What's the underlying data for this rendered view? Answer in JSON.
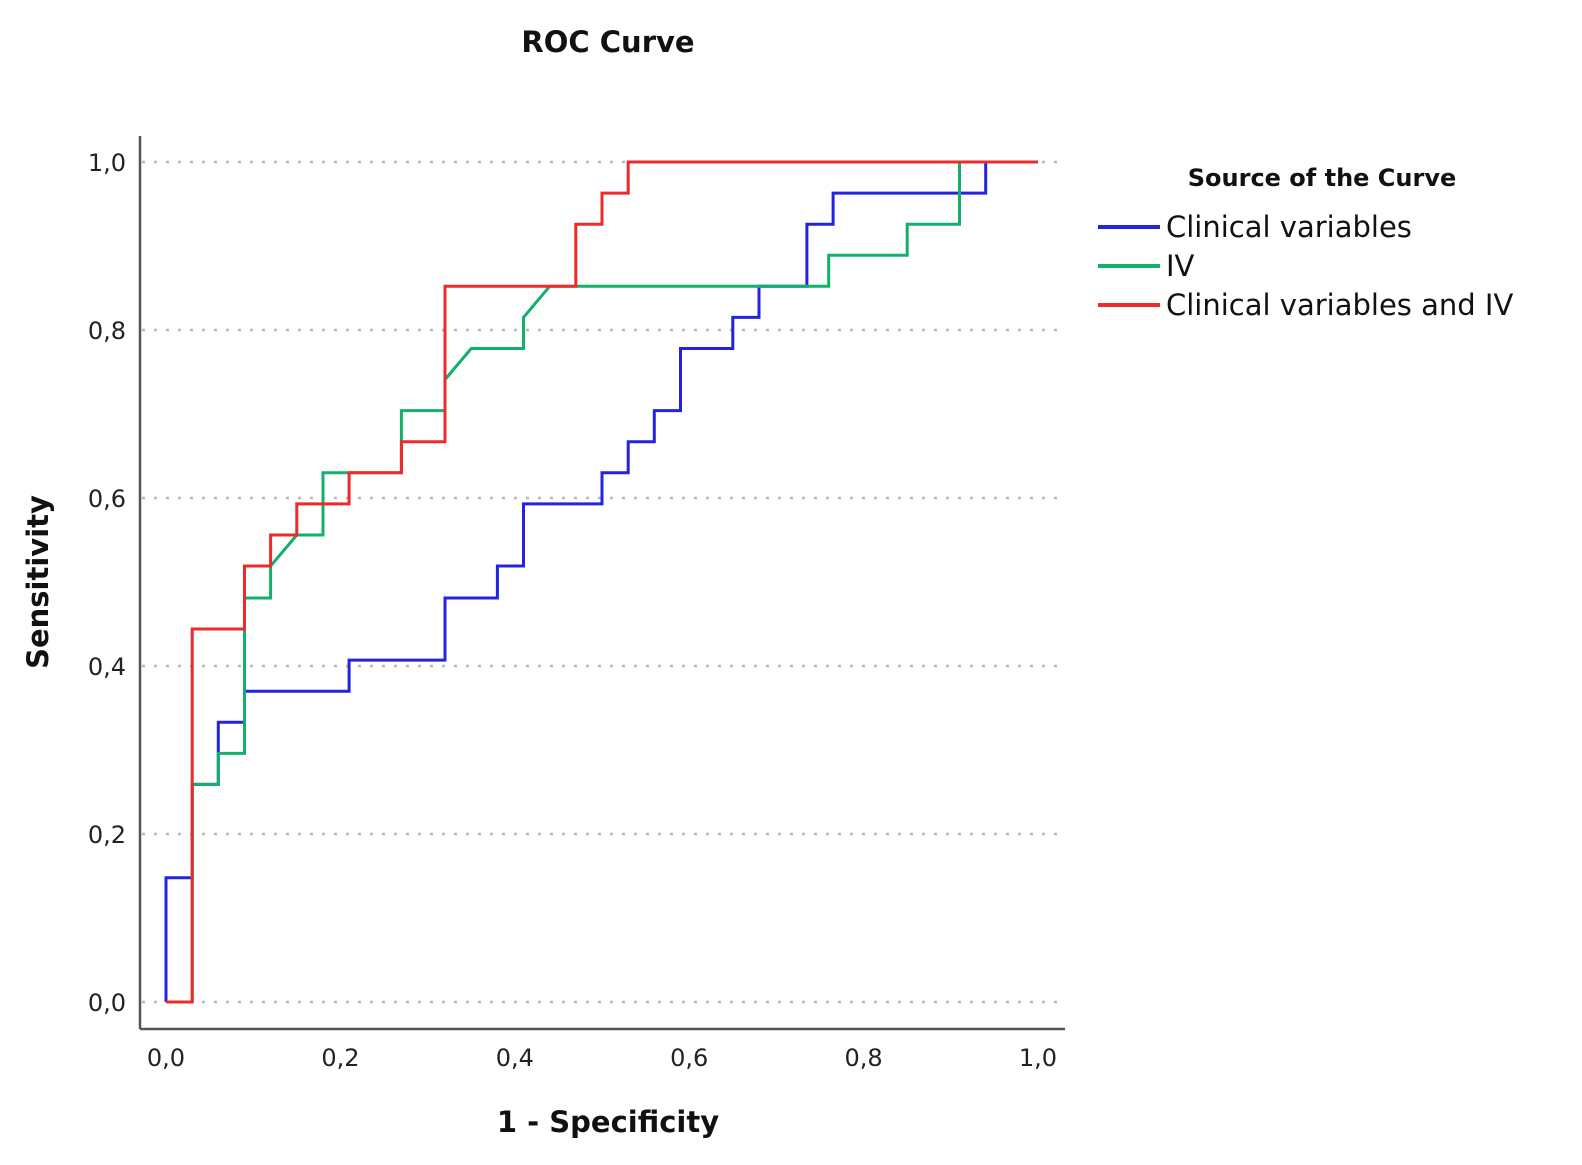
{
  "chart_data": {
    "type": "line",
    "title": "ROC Curve",
    "xlabel": "1 - Specificity",
    "ylabel": "Sensitivity",
    "xlim": [
      0,
      1
    ],
    "ylim": [
      0,
      1
    ],
    "xticks": [
      0.0,
      0.2,
      0.4,
      0.6,
      0.8,
      1.0
    ],
    "xtick_labels": [
      "0,0",
      "0,2",
      "0,4",
      "0,6",
      "0,8",
      "1,0"
    ],
    "yticks": [
      0.0,
      0.2,
      0.4,
      0.6,
      0.8,
      1.0
    ],
    "ytick_labels": [
      "0,0",
      "0,2",
      "0,4",
      "0,6",
      "0,8",
      "1,0"
    ],
    "grid": "horizontal dotted",
    "legend": {
      "title": "Source of the Curve",
      "position": "right"
    },
    "series": [
      {
        "name": "Clinical variables",
        "color": "#2424e0",
        "x": [
          0,
          0,
          0.03,
          0.03,
          0.06,
          0.06,
          0.09,
          0.09,
          0.21,
          0.21,
          0.32,
          0.32,
          0.38,
          0.38,
          0.41,
          0.41,
          0.5,
          0.5,
          0.53,
          0.53,
          0.56,
          0.56,
          0.59,
          0.59,
          0.65,
          0.65,
          0.68,
          0.68,
          0.735,
          0.735,
          0.765,
          0.765,
          0.94,
          0.94,
          1.0
        ],
        "y": [
          0,
          0.148,
          0.148,
          0.259,
          0.259,
          0.333,
          0.333,
          0.37,
          0.37,
          0.407,
          0.407,
          0.481,
          0.481,
          0.519,
          0.519,
          0.593,
          0.593,
          0.63,
          0.63,
          0.667,
          0.667,
          0.704,
          0.704,
          0.778,
          0.778,
          0.815,
          0.815,
          0.852,
          0.852,
          0.926,
          0.926,
          0.963,
          0.963,
          1.0,
          1.0
        ]
      },
      {
        "name": "IV",
        "color": "#12b06a",
        "x": [
          0.03,
          0.03,
          0.06,
          0.06,
          0.09,
          0.09,
          0.12,
          0.12,
          0.15,
          0.18,
          0.18,
          0.27,
          0.27,
          0.32,
          0.32,
          0.35,
          0.41,
          0.41,
          0.44,
          0.76,
          0.76,
          0.85,
          0.85,
          0.91,
          0.91,
          1.0
        ],
        "y": [
          0,
          0.259,
          0.259,
          0.296,
          0.296,
          0.481,
          0.481,
          0.519,
          0.556,
          0.556,
          0.63,
          0.63,
          0.704,
          0.704,
          0.741,
          0.778,
          0.778,
          0.815,
          0.852,
          0.852,
          0.889,
          0.889,
          0.926,
          0.926,
          1.0,
          1.0
        ]
      },
      {
        "name": "Clinical variables and IV",
        "color": "#ee2a2a",
        "x": [
          0,
          0.03,
          0.03,
          0.09,
          0.09,
          0.12,
          0.12,
          0.15,
          0.15,
          0.21,
          0.21,
          0.27,
          0.27,
          0.32,
          0.32,
          0.47,
          0.47,
          0.5,
          0.5,
          0.53,
          0.53,
          1.0
        ],
        "y": [
          0,
          0,
          0.444,
          0.444,
          0.519,
          0.519,
          0.556,
          0.556,
          0.593,
          0.593,
          0.63,
          0.63,
          0.667,
          0.667,
          0.852,
          0.852,
          0.926,
          0.926,
          0.963,
          0.963,
          1.0,
          1.0
        ]
      }
    ]
  }
}
